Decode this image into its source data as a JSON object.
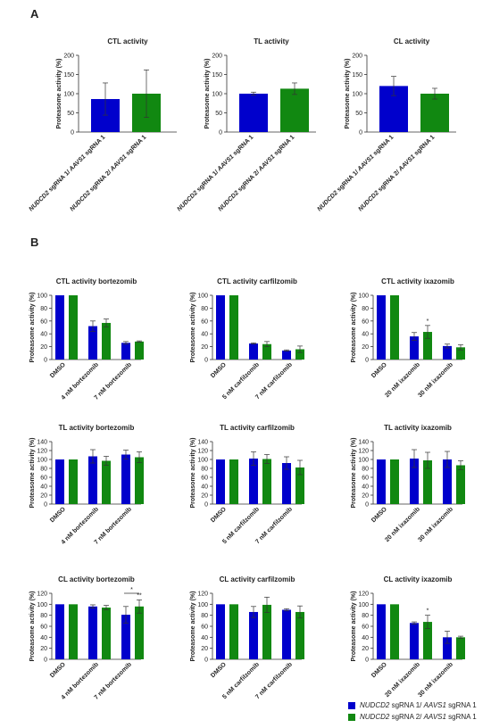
{
  "panels": {
    "a_label": "A",
    "b_label": "B"
  },
  "colors": {
    "blue": "#0000cc",
    "green": "#118811"
  },
  "legend": {
    "items": [
      {
        "gene1": "NUDCD2",
        "text1": " sgRNA 1/ ",
        "gene2": "AAVS1",
        "text2": " sgRNA 1",
        "color": "#0000cc"
      },
      {
        "gene1": "NUDCD2",
        "text1": " sgRNA 2/ ",
        "gene2": "AAVS1",
        "text2": " sgRNA 1",
        "color": "#118811"
      }
    ]
  },
  "chart_data": [
    {
      "type": "bar",
      "title": "CTL activity",
      "ylabel": "Proteasome activity (%)",
      "ylim": [
        0,
        200
      ],
      "yticks": [
        0,
        50,
        100,
        150,
        200
      ],
      "categories": [
        "NUDCD2 sgRNA 1/ AAVS1 sgRNA 1",
        "NUDCD2 sgRNA 2/ AAVS1 sgRNA 1"
      ],
      "values": [
        86,
        100
      ],
      "errors": [
        42,
        62
      ],
      "colors": [
        "#0000cc",
        "#118811"
      ],
      "significance": []
    },
    {
      "type": "bar",
      "title": "TL activity",
      "ylabel": "Proteasome activity (%)",
      "ylim": [
        0,
        200
      ],
      "yticks": [
        0,
        50,
        100,
        150,
        200
      ],
      "categories": [
        "NUDCD2 sgRNA 1/ AAVS1 sgRNA 1",
        "NUDCD2 sgRNA 2/ AAVS1 sgRNA 1"
      ],
      "values": [
        100,
        113
      ],
      "errors": [
        4,
        15
      ],
      "colors": [
        "#0000cc",
        "#118811"
      ],
      "significance": []
    },
    {
      "type": "bar",
      "title": "CL activity",
      "ylabel": "Proteasome activity (%)",
      "ylim": [
        0,
        200
      ],
      "yticks": [
        0,
        50,
        100,
        150,
        200
      ],
      "categories": [
        "NUDCD2 sgRNA 1/ AAVS1 sgRNA 1",
        "NUDCD2 sgRNA 2/ AAVS1 sgRNA 1"
      ],
      "values": [
        120,
        100
      ],
      "errors": [
        25,
        14
      ],
      "colors": [
        "#0000cc",
        "#118811"
      ],
      "significance": []
    },
    {
      "type": "bar",
      "title": "CTL activity bortezomib",
      "ylabel": "Proteasome activity (%)",
      "ylim": [
        0,
        100
      ],
      "yticks": [
        0,
        20,
        40,
        60,
        80,
        100
      ],
      "categories": [
        "DMSO",
        "4 nM bortezomib",
        "7 nM bortezomib"
      ],
      "series": [
        {
          "values": [
            100,
            52,
            26
          ],
          "errors": [
            0,
            8,
            2
          ]
        },
        {
          "values": [
            100,
            57,
            28
          ],
          "errors": [
            0,
            6,
            1
          ]
        }
      ],
      "significance": []
    },
    {
      "type": "bar",
      "title": "CTL activity carfilzomib",
      "ylabel": "Proteasome activity (%)",
      "ylim": [
        0,
        100
      ],
      "yticks": [
        0,
        20,
        40,
        60,
        80,
        100
      ],
      "categories": [
        "DMSO",
        "5 nM carfilzomib",
        "7 nM carfilzomib"
      ],
      "series": [
        {
          "values": [
            100,
            25,
            14
          ],
          "errors": [
            0,
            1,
            1
          ]
        },
        {
          "values": [
            100,
            24,
            16
          ],
          "errors": [
            0,
            4,
            5
          ]
        }
      ],
      "significance": []
    },
    {
      "type": "bar",
      "title": "CTL activity ixazomib",
      "ylabel": "Proteasome activity (%)",
      "ylim": [
        0,
        100
      ],
      "yticks": [
        0,
        20,
        40,
        60,
        80,
        100
      ],
      "categories": [
        "DMSO",
        "20 nM ixazomib",
        "30 nM ixazomib"
      ],
      "series": [
        {
          "values": [
            100,
            36,
            21
          ],
          "errors": [
            0,
            6,
            3
          ]
        },
        {
          "values": [
            100,
            43,
            19
          ],
          "errors": [
            0,
            10,
            4
          ]
        }
      ],
      "significance": [
        {
          "category": 1,
          "series": 1,
          "text": "*"
        }
      ]
    },
    {
      "type": "bar",
      "title": "TL activity bortezomib",
      "ylabel": "Proteasome activity (%)",
      "ylim": [
        0,
        140
      ],
      "yticks": [
        0,
        20,
        40,
        60,
        80,
        100,
        120,
        140
      ],
      "categories": [
        "DMSO",
        "4 nM bortezomib",
        "7 nM bortezomib"
      ],
      "series": [
        {
          "values": [
            100,
            107,
            111
          ],
          "errors": [
            0,
            15,
            10
          ]
        },
        {
          "values": [
            100,
            97,
            105
          ],
          "errors": [
            0,
            10,
            12
          ]
        }
      ],
      "significance": []
    },
    {
      "type": "bar",
      "title": "TL activity carfilzomib",
      "ylabel": "Proteasome activity (%)",
      "ylim": [
        0,
        140
      ],
      "yticks": [
        0,
        20,
        40,
        60,
        80,
        100,
        120,
        140
      ],
      "categories": [
        "DMSO",
        "5 nM carfilzomib",
        "7 nM carfilzomib"
      ],
      "series": [
        {
          "values": [
            100,
            102,
            92
          ],
          "errors": [
            0,
            15,
            14
          ]
        },
        {
          "values": [
            100,
            101,
            82
          ],
          "errors": [
            0,
            10,
            16
          ]
        }
      ],
      "significance": []
    },
    {
      "type": "bar",
      "title": "TL activity ixazomib",
      "ylabel": "Proteasome activity (%)",
      "ylim": [
        0,
        140
      ],
      "yticks": [
        0,
        20,
        40,
        60,
        80,
        100,
        120,
        140
      ],
      "categories": [
        "DMSO",
        "20 nM ixazomib",
        "30 nM ixazomib"
      ],
      "series": [
        {
          "values": [
            100,
            102,
            100
          ],
          "errors": [
            0,
            20,
            18
          ]
        },
        {
          "values": [
            100,
            98,
            87
          ],
          "errors": [
            0,
            18,
            10
          ]
        }
      ],
      "significance": []
    },
    {
      "type": "bar",
      "title": "CL activity bortezomib",
      "ylabel": "Proteasome activity (%)",
      "ylim": [
        0,
        120
      ],
      "yticks": [
        0,
        20,
        40,
        60,
        80,
        100,
        120
      ],
      "categories": [
        "DMSO",
        "4 nM bortezomib",
        "7 nM bortezomib"
      ],
      "series": [
        {
          "values": [
            100,
            96,
            81
          ],
          "errors": [
            0,
            3,
            15
          ]
        },
        {
          "values": [
            100,
            94,
            96
          ],
          "errors": [
            0,
            4,
            12
          ]
        }
      ],
      "significance": [
        {
          "category": 2,
          "series": 1,
          "text": "**"
        },
        {
          "category": 2,
          "bracket": true,
          "text": "*"
        }
      ]
    },
    {
      "type": "bar",
      "title": "CL activity carfilzomib",
      "ylabel": "Proteasome activity (%)",
      "ylim": [
        0,
        120
      ],
      "yticks": [
        0,
        20,
        40,
        60,
        80,
        100,
        120
      ],
      "categories": [
        "DMSO",
        "5 nM carfilzomib",
        "7 nM carfilzomib"
      ],
      "series": [
        {
          "values": [
            100,
            86,
            90
          ],
          "errors": [
            0,
            10,
            2
          ]
        },
        {
          "values": [
            100,
            99,
            86
          ],
          "errors": [
            0,
            14,
            11
          ]
        }
      ],
      "significance": []
    },
    {
      "type": "bar",
      "title": "CL activity ixazomib",
      "ylabel": "Proteasome activity (%)",
      "ylim": [
        0,
        120
      ],
      "yticks": [
        0,
        20,
        40,
        60,
        80,
        100,
        120
      ],
      "categories": [
        "DMSO",
        "20 nM ixazomib",
        "30 nM ixazomib"
      ],
      "series": [
        {
          "values": [
            100,
            66,
            40
          ],
          "errors": [
            0,
            2,
            11
          ]
        },
        {
          "values": [
            100,
            68,
            40
          ],
          "errors": [
            0,
            12,
            2
          ]
        }
      ],
      "significance": [
        {
          "category": 1,
          "series": 1,
          "text": "*"
        }
      ]
    }
  ]
}
